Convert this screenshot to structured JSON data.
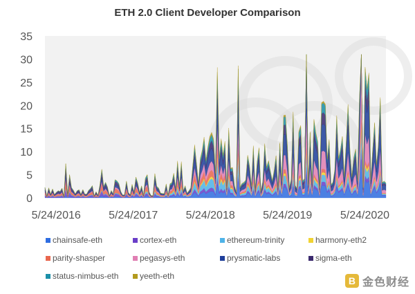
{
  "chart_data": {
    "type": "area",
    "stacked": true,
    "title": "ETH 2.0 Client Developer Comparison",
    "xlabel": "",
    "ylabel": "",
    "ylim": [
      0,
      35
    ],
    "yticks": [
      0,
      5,
      10,
      15,
      20,
      25,
      30,
      35
    ],
    "x_range": [
      "2016-04-01",
      "2020-09-01"
    ],
    "xtick_labels": [
      {
        "date": "2016-05-24",
        "label": "5/24/2016"
      },
      {
        "date": "2017-05-24",
        "label": "5/24/2017"
      },
      {
        "date": "2018-05-24",
        "label": "5/24/2018"
      },
      {
        "date": "2019-05-24",
        "label": "5/24/2019"
      },
      {
        "date": "2020-05-24",
        "label": "5/24/2020"
      }
    ],
    "grid": false,
    "legend_position": "bottom",
    "background_color": "#f2f2f2",
    "series": [
      {
        "name": "chainsafe-eth",
        "color": "#2f6de1",
        "points": [
          [
            "2016-04",
            0.1
          ],
          [
            "2016-10",
            0.1
          ],
          [
            "2017-04",
            0.2
          ],
          [
            "2017-10",
            0.3
          ],
          [
            "2018-01",
            0.5
          ],
          [
            "2018-04",
            0.7
          ],
          [
            "2018-07",
            0.8
          ],
          [
            "2018-10",
            1.0
          ],
          [
            "2019-01",
            1.0
          ],
          [
            "2019-04",
            1.2
          ],
          [
            "2019-07",
            1.3
          ],
          [
            "2019-10",
            1.4
          ],
          [
            "2020-01",
            1.6
          ],
          [
            "2020-04",
            1.9
          ],
          [
            "2020-07",
            2.1
          ],
          [
            "2020-09",
            2.0
          ]
        ]
      },
      {
        "name": "cortex-eth",
        "color": "#6a3ec8",
        "points": [
          [
            "2016-04",
            0.3
          ],
          [
            "2016-10",
            0.3
          ],
          [
            "2017-04",
            0.3
          ],
          [
            "2017-10",
            0.3
          ],
          [
            "2018-01",
            0.4
          ],
          [
            "2018-04",
            0.4
          ],
          [
            "2018-07",
            0.4
          ],
          [
            "2018-10",
            0.4
          ],
          [
            "2019-01",
            0.4
          ],
          [
            "2019-04",
            0.4
          ],
          [
            "2019-07",
            0.4
          ],
          [
            "2019-10",
            0.4
          ],
          [
            "2020-01",
            0.5
          ],
          [
            "2020-04",
            0.5
          ],
          [
            "2020-07",
            0.5
          ],
          [
            "2020-09",
            0.5
          ]
        ]
      },
      {
        "name": "ethereum-trinity",
        "color": "#4fb3e8",
        "points": [
          [
            "2016-04",
            0.1
          ],
          [
            "2016-10",
            0.1
          ],
          [
            "2017-04",
            0.1
          ],
          [
            "2017-10",
            0.3
          ],
          [
            "2018-01",
            0.6
          ],
          [
            "2018-04",
            0.9
          ],
          [
            "2018-07",
            1.1
          ],
          [
            "2018-10",
            1.0
          ],
          [
            "2019-01",
            0.9
          ],
          [
            "2019-04",
            1.0
          ],
          [
            "2019-07",
            0.9
          ],
          [
            "2019-10",
            0.8
          ],
          [
            "2020-01",
            0.9
          ],
          [
            "2020-04",
            1.0
          ],
          [
            "2020-07",
            1.0
          ],
          [
            "2020-09",
            0.8
          ]
        ]
      },
      {
        "name": "harmony-eth2",
        "color": "#f1d332",
        "points": [
          [
            "2016-04",
            0.0
          ],
          [
            "2016-10",
            0.0
          ],
          [
            "2017-04",
            0.0
          ],
          [
            "2017-10",
            0.1
          ],
          [
            "2018-01",
            0.2
          ],
          [
            "2018-04",
            0.2
          ],
          [
            "2018-07",
            0.3
          ],
          [
            "2018-10",
            0.3
          ],
          [
            "2019-01",
            0.3
          ],
          [
            "2019-04",
            0.3
          ],
          [
            "2019-07",
            0.3
          ],
          [
            "2019-10",
            0.3
          ],
          [
            "2020-01",
            0.3
          ],
          [
            "2020-04",
            0.4
          ],
          [
            "2020-07",
            0.4
          ],
          [
            "2020-09",
            0.3
          ]
        ]
      },
      {
        "name": "parity-shasper",
        "color": "#e9674f",
        "points": [
          [
            "2016-04",
            0.4
          ],
          [
            "2016-10",
            0.4
          ],
          [
            "2017-04",
            0.5
          ],
          [
            "2017-10",
            0.6
          ],
          [
            "2018-01",
            0.8
          ],
          [
            "2018-04",
            0.8
          ],
          [
            "2018-07",
            0.7
          ],
          [
            "2018-10",
            0.6
          ],
          [
            "2019-01",
            0.5
          ],
          [
            "2019-04",
            0.5
          ],
          [
            "2019-07",
            0.4
          ],
          [
            "2019-10",
            0.4
          ],
          [
            "2020-01",
            0.4
          ],
          [
            "2020-04",
            0.4
          ],
          [
            "2020-07",
            0.4
          ],
          [
            "2020-09",
            0.3
          ]
        ]
      },
      {
        "name": "pegasys-eth",
        "color": "#e07fb3",
        "points": [
          [
            "2016-04",
            0.1
          ],
          [
            "2016-10",
            0.1
          ],
          [
            "2017-04",
            0.2
          ],
          [
            "2017-10",
            0.3
          ],
          [
            "2018-01",
            0.6
          ],
          [
            "2018-04",
            0.9
          ],
          [
            "2018-07",
            1.1
          ],
          [
            "2018-10",
            1.2
          ],
          [
            "2019-01",
            1.4
          ],
          [
            "2019-04",
            1.6
          ],
          [
            "2019-07",
            1.8
          ],
          [
            "2019-10",
            2.0
          ],
          [
            "2020-01",
            2.4
          ],
          [
            "2020-04",
            2.9
          ],
          [
            "2020-07",
            3.1
          ],
          [
            "2020-09",
            2.7
          ]
        ]
      },
      {
        "name": "prysmatic-labs",
        "color": "#1f3f9a",
        "points": [
          [
            "2016-04",
            0.2
          ],
          [
            "2016-10",
            0.2
          ],
          [
            "2017-04",
            0.3
          ],
          [
            "2017-10",
            0.5
          ],
          [
            "2018-01",
            0.9
          ],
          [
            "2018-04",
            1.3
          ],
          [
            "2018-07",
            1.6
          ],
          [
            "2018-10",
            1.8
          ],
          [
            "2019-01",
            2.0
          ],
          [
            "2019-04",
            2.3
          ],
          [
            "2019-07",
            2.6
          ],
          [
            "2019-10",
            3.0
          ],
          [
            "2020-01",
            3.5
          ],
          [
            "2020-04",
            4.1
          ],
          [
            "2020-07",
            4.4
          ],
          [
            "2020-09",
            3.9
          ]
        ]
      },
      {
        "name": "sigma-eth",
        "color": "#3b2a6e",
        "points": [
          [
            "2016-04",
            0.4
          ],
          [
            "2016-10",
            0.4
          ],
          [
            "2017-04",
            0.4
          ],
          [
            "2017-10",
            0.5
          ],
          [
            "2018-01",
            0.7
          ],
          [
            "2018-04",
            0.8
          ],
          [
            "2018-07",
            0.9
          ],
          [
            "2018-10",
            0.9
          ],
          [
            "2019-01",
            1.0
          ],
          [
            "2019-04",
            1.1
          ],
          [
            "2019-07",
            1.2
          ],
          [
            "2019-10",
            1.3
          ],
          [
            "2020-01",
            1.5
          ],
          [
            "2020-04",
            1.7
          ],
          [
            "2020-07",
            1.8
          ],
          [
            "2020-09",
            1.6
          ]
        ]
      },
      {
        "name": "status-nimbus-eth",
        "color": "#1c8fa8",
        "points": [
          [
            "2016-04",
            0.1
          ],
          [
            "2016-10",
            0.1
          ],
          [
            "2017-04",
            0.2
          ],
          [
            "2017-10",
            0.3
          ],
          [
            "2018-01",
            0.5
          ],
          [
            "2018-04",
            0.6
          ],
          [
            "2018-07",
            0.7
          ],
          [
            "2018-10",
            0.7
          ],
          [
            "2019-01",
            0.8
          ],
          [
            "2019-04",
            0.9
          ],
          [
            "2019-07",
            1.0
          ],
          [
            "2019-10",
            1.1
          ],
          [
            "2020-01",
            1.2
          ],
          [
            "2020-04",
            1.3
          ],
          [
            "2020-07",
            1.4
          ],
          [
            "2020-09",
            1.2
          ]
        ]
      },
      {
        "name": "yeeth-eth",
        "color": "#b29a1e",
        "points": [
          [
            "2016-04",
            0.0
          ],
          [
            "2016-10",
            0.0
          ],
          [
            "2017-04",
            0.0
          ],
          [
            "2017-10",
            0.1
          ],
          [
            "2018-01",
            0.2
          ],
          [
            "2018-04",
            0.2
          ],
          [
            "2018-07",
            0.3
          ],
          [
            "2018-10",
            0.2
          ],
          [
            "2019-01",
            0.2
          ],
          [
            "2019-04",
            0.2
          ],
          [
            "2019-07",
            0.2
          ],
          [
            "2019-10",
            0.2
          ],
          [
            "2020-01",
            0.2
          ],
          [
            "2020-04",
            0.2
          ],
          [
            "2020-07",
            0.2
          ],
          [
            "2020-09",
            0.2
          ]
        ]
      }
    ]
  },
  "watermark": {
    "logo_glyph": "B",
    "text": "金色财经",
    "color": "#e5b93a"
  }
}
